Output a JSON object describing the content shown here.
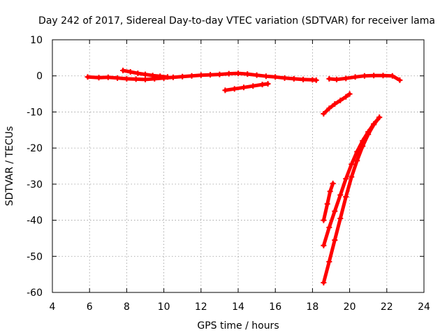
{
  "chart_data": {
    "type": "scatter",
    "title": "Day 242 of 2017, Sidereal Day-to-day VTEC variation (SDTVAR) for receiver lama",
    "xlabel": "GPS time / hours",
    "ylabel": "SDTVAR / TECUs",
    "xlim": [
      4,
      24
    ],
    "ylim": [
      -60,
      10
    ],
    "xticks": [
      4,
      6,
      8,
      10,
      12,
      14,
      16,
      18,
      20,
      22,
      24
    ],
    "yticks": [
      10,
      0,
      -10,
      -20,
      -30,
      -40,
      -50,
      -60
    ],
    "grid": true,
    "legend": "none",
    "marker_color": "#ff0000",
    "series": [
      {
        "x": [
          5.9,
          6.5,
          7.0,
          7.5,
          8.0,
          8.5,
          9.0,
          9.5,
          10.0,
          10.5,
          11.0,
          11.5,
          12.0,
          12.5,
          13.0,
          13.5,
          14.0,
          14.5,
          15.0,
          15.5,
          16.0,
          16.5,
          17.0,
          17.5,
          18.0,
          18.2
        ],
        "y": [
          -0.3,
          -0.5,
          -0.4,
          -0.6,
          -0.8,
          -0.9,
          -1.0,
          -0.8,
          -0.6,
          -0.4,
          -0.2,
          0.0,
          0.2,
          0.3,
          0.4,
          0.6,
          0.7,
          0.5,
          0.2,
          -0.1,
          -0.3,
          -0.6,
          -0.8,
          -1.0,
          -1.1,
          -1.2
        ]
      },
      {
        "x": [
          7.8,
          8.2,
          8.6,
          9.0,
          9.4,
          9.8,
          10.2
        ],
        "y": [
          1.5,
          1.1,
          0.7,
          0.4,
          0.1,
          -0.1,
          -0.3
        ]
      },
      {
        "x": [
          13.3,
          13.8,
          14.3,
          14.8,
          15.3,
          15.6
        ],
        "y": [
          -4.0,
          -3.6,
          -3.2,
          -2.8,
          -2.4,
          -2.2
        ]
      },
      {
        "x": [
          18.9,
          19.3,
          19.8,
          20.3,
          20.8,
          21.3,
          21.8,
          22.3,
          22.7
        ],
        "y": [
          -0.8,
          -1.0,
          -0.7,
          -0.3,
          0.0,
          0.1,
          0.1,
          0.0,
          -1.2
        ]
      },
      {
        "x": [
          18.6,
          18.9,
          19.2,
          19.5,
          19.8,
          20.0
        ],
        "y": [
          -10.5,
          -9.0,
          -7.8,
          -6.8,
          -5.8,
          -5.0
        ]
      },
      {
        "x": [
          18.6,
          18.8,
          18.95,
          19.1
        ],
        "y": [
          -40.0,
          -35.5,
          -32.0,
          -29.8
        ]
      },
      {
        "x": [
          18.6,
          18.9,
          19.2,
          19.5,
          19.8,
          20.1,
          20.4,
          20.7,
          21.0,
          21.3,
          21.6
        ],
        "y": [
          -47.0,
          -42.0,
          -37.5,
          -33.0,
          -28.5,
          -24.5,
          -21.0,
          -18.0,
          -15.5,
          -13.3,
          -11.5
        ]
      },
      {
        "x": [
          18.6,
          18.9,
          19.2,
          19.5,
          19.8,
          20.1,
          20.4,
          20.7,
          21.0,
          21.3,
          21.6
        ],
        "y": [
          -57.3,
          -51.5,
          -45.5,
          -39.5,
          -33.5,
          -28.0,
          -23.5,
          -19.5,
          -16.2,
          -13.5,
          -11.5
        ]
      }
    ]
  }
}
